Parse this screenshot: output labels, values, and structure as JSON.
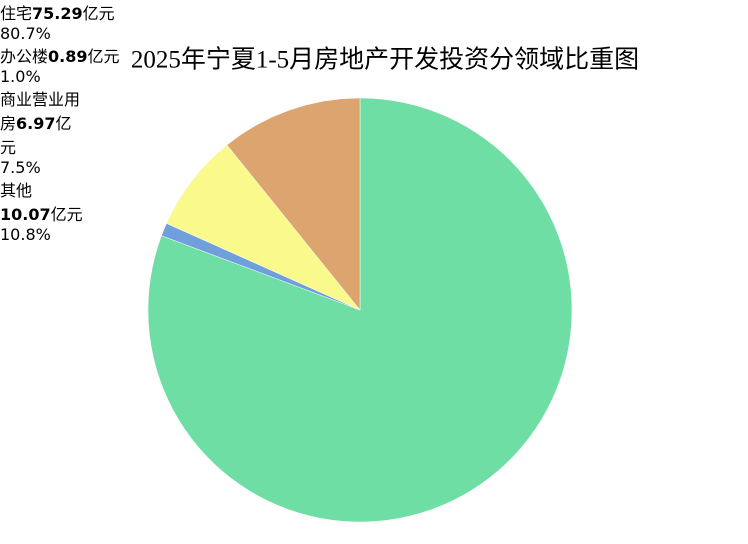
{
  "chart_data": {
    "type": "pie",
    "title": "2025年宁夏1-5月房地产开发投资分领域比重图",
    "categories": [
      "住宅",
      "办公楼",
      "商业营业用房",
      "其他"
    ],
    "values": [
      80.7,
      1.0,
      7.5,
      10.8
    ],
    "value_labels": [
      "80.7%",
      "1.0%",
      "7.5%",
      "10.8%"
    ],
    "amounts": [
      75.29,
      0.89,
      6.97,
      10.07
    ],
    "unit": "亿元",
    "colors": [
      "#6EDEA4",
      "#6FA0DC",
      "#FAFA8C",
      "#DCA46E"
    ]
  }
}
